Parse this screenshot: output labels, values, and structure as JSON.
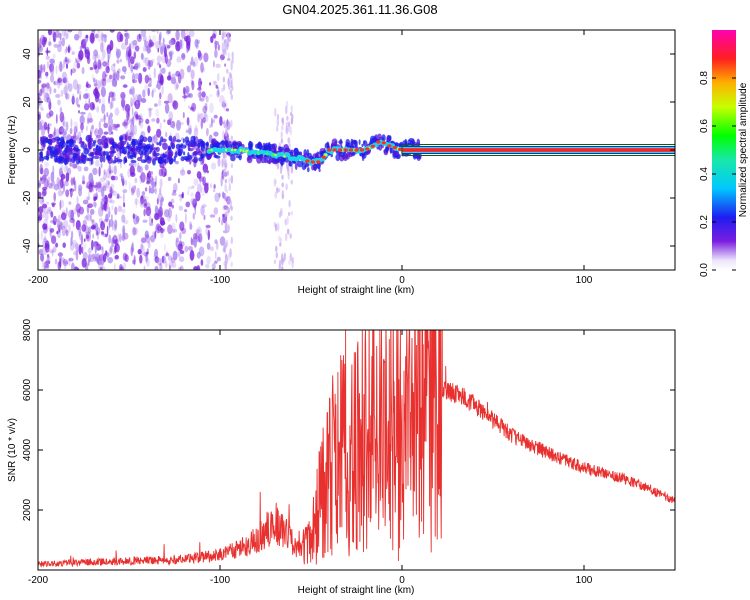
{
  "title": "GN04.2025.361.11.36.G08",
  "chart_data": [
    {
      "type": "heatmap",
      "name": "spectrogram",
      "xlabel": "Height of straight line (km)",
      "ylabel": "Frequency (Hz)",
      "xlim": [
        -200,
        150
      ],
      "ylim": [
        -50,
        50
      ],
      "xticks": [
        -200,
        -100,
        0,
        100
      ],
      "xtick_labels": [
        "-200",
        "-100",
        "0",
        "100"
      ],
      "yticks": [
        -40,
        -20,
        0,
        20,
        40
      ],
      "ytick_labels": [
        "-40",
        "-20",
        "0",
        "20",
        "40"
      ],
      "colorbar": {
        "label": "Normalized spectral amplitude",
        "range": [
          0,
          1
        ],
        "ticks": [
          0,
          0.2,
          0.4,
          0.6,
          0.8
        ],
        "tick_labels": [
          "0.0",
          "0.2",
          "0.4",
          "0.6",
          "0.8"
        ]
      },
      "trace": {
        "x": [
          -108,
          -100,
          -90,
          -80,
          -70,
          -60,
          -55,
          -50,
          -45,
          -40,
          -35,
          -30,
          -25,
          -20,
          -15,
          -12,
          -8,
          -4,
          0,
          5,
          10,
          150
        ],
        "y": [
          0,
          0,
          0,
          -1,
          -2,
          -3,
          -4,
          -5,
          -5,
          0,
          0,
          0,
          0,
          0,
          2,
          4,
          2,
          1,
          0,
          1,
          0,
          0
        ]
      },
      "scatter_zone": {
        "x": [
          -200,
          -95
        ],
        "y": [
          -50,
          50
        ]
      },
      "scatter_stripes": [
        {
          "x": [
            -70,
            -60
          ],
          "y": [
            -50,
            20
          ]
        },
        {
          "x": [
            -99,
            -93
          ],
          "y": [
            -50,
            50
          ]
        }
      ]
    },
    {
      "type": "line",
      "name": "snr",
      "xlabel": "Height of straight line (km)",
      "ylabel": "SNR (10 * v/v)",
      "xlim": [
        -200,
        150
      ],
      "ylim": [
        0,
        8000
      ],
      "xticks": [
        -200,
        -100,
        0,
        100
      ],
      "xtick_labels": [
        "-200",
        "-100",
        "0",
        "100"
      ],
      "yticks": [
        2000,
        4000,
        6000,
        8000
      ],
      "ytick_labels": [
        "2000",
        "4000",
        "6000",
        "8000"
      ],
      "color": "#e8302e",
      "envelope": {
        "x": [
          -200,
          -150,
          -120,
          -100,
          -90,
          -80,
          -70,
          -62,
          -58,
          -50,
          -45,
          -40,
          -35,
          -30,
          -25,
          -20,
          -15,
          -10,
          -5,
          0,
          5,
          10,
          15,
          20,
          30,
          40,
          50,
          60,
          80,
          100,
          120,
          140,
          150
        ],
        "y": [
          200,
          300,
          350,
          500,
          700,
          1000,
          1600,
          1100,
          700,
          900,
          2400,
          3200,
          3800,
          4200,
          3900,
          4600,
          4500,
          4400,
          4900,
          4500,
          5000,
          5600,
          5800,
          6000,
          5900,
          5500,
          5000,
          4500,
          3900,
          3400,
          3100,
          2600,
          2300
        ]
      },
      "spikes": [
        {
          "x": -31,
          "y": 8000
        },
        {
          "x": -33,
          "y": 7000
        },
        {
          "x": -7,
          "y": 7700
        },
        {
          "x": 8,
          "y": 7500
        },
        {
          "x": -2,
          "y": 300
        },
        {
          "x": 24,
          "y": 6800
        },
        {
          "x": 47,
          "y": 5600
        }
      ]
    }
  ]
}
